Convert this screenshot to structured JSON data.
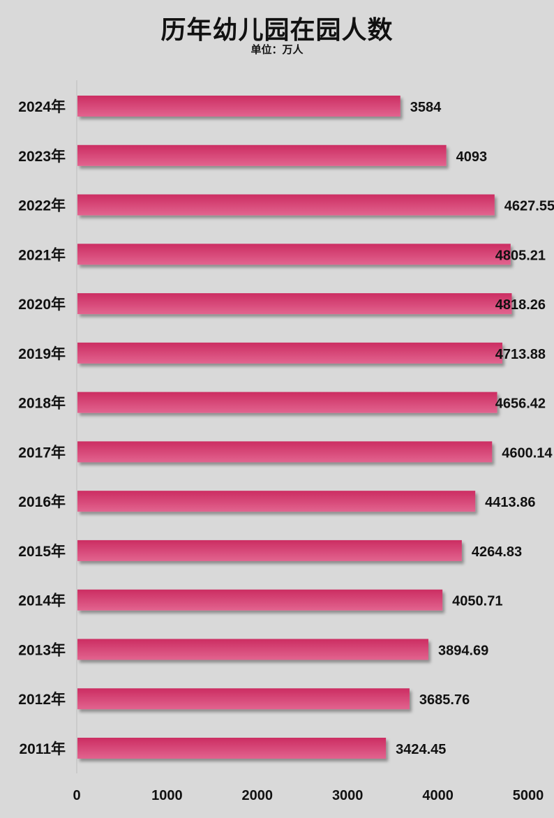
{
  "chart_data": {
    "type": "bar",
    "orientation": "horizontal",
    "title": "历年幼儿园在园人数",
    "subtitle": "单位：万人",
    "categories": [
      "2024年",
      "2023年",
      "2022年",
      "2021年",
      "2020年",
      "2019年",
      "2018年",
      "2017年",
      "2016年",
      "2015年",
      "2014年",
      "2013年",
      "2012年",
      "2011年"
    ],
    "values": [
      3584,
      4093,
      4627.55,
      4805.21,
      4818.26,
      4713.88,
      4656.42,
      4600.14,
      4413.86,
      4264.83,
      4050.71,
      3894.69,
      3685.76,
      3424.45
    ],
    "value_labels": [
      "3584",
      "4093",
      "4627.55",
      "4805.21",
      "4818.26",
      "4713.88",
      "4656.42",
      "4600.14",
      "4413.86",
      "4264.83",
      "4050.71",
      "3894.69",
      "3685.76",
      "3424.45"
    ],
    "xlim": [
      0,
      5000
    ],
    "x_ticks": [
      "0",
      "1000",
      "2000",
      "3000",
      "4000",
      "5000"
    ],
    "grid": false,
    "legend": "none",
    "colors": {
      "bar_top": "#cc2d62",
      "bar_bottom": "#e2648f",
      "background": "#d9d9d9"
    }
  }
}
